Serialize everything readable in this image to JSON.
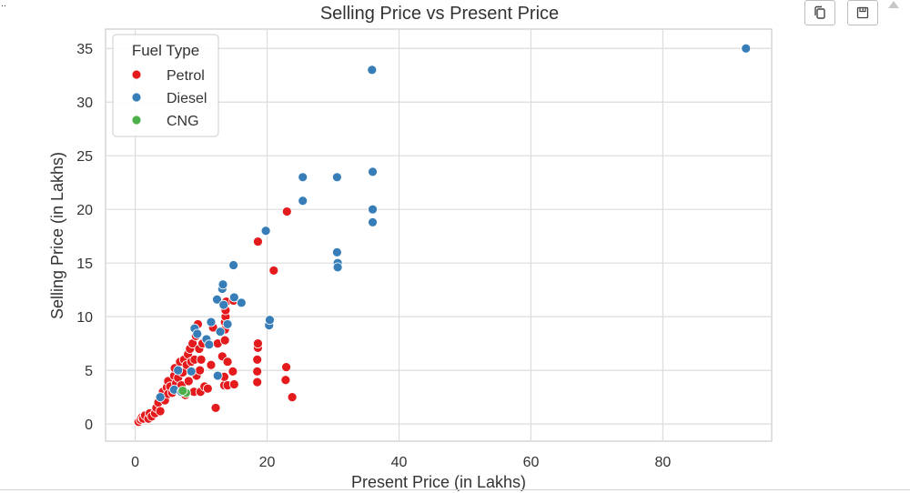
{
  "toolbar": {
    "corner_text": "..",
    "copy_icon": "copy-icon",
    "save_icon": "save-icon",
    "scroll_icon": "triangle-up-icon"
  },
  "chart_data": {
    "type": "scatter",
    "title": "Selling Price vs Present Price",
    "xlabel": "Present Price (in Lakhs)",
    "ylabel": "Selling Price (in Lakhs)",
    "xlim": [
      -4.5,
      96.5
    ],
    "ylim": [
      -1.6,
      36.8
    ],
    "xticks": [
      0,
      20,
      40,
      60,
      80
    ],
    "yticks": [
      0,
      5,
      10,
      15,
      20,
      25,
      30,
      35
    ],
    "grid": true,
    "legend": {
      "title": "Fuel Type",
      "placement": "top-left"
    },
    "series": [
      {
        "name": "Petrol",
        "color": "#e41a1c",
        "points": [
          [
            0.5,
            0.2
          ],
          [
            0.8,
            0.4
          ],
          [
            1.0,
            0.6
          ],
          [
            1.2,
            0.5
          ],
          [
            1.5,
            0.8
          ],
          [
            2.0,
            0.5
          ],
          [
            2.2,
            1.0
          ],
          [
            2.5,
            0.7
          ],
          [
            3.0,
            1.0
          ],
          [
            3.2,
            1.5
          ],
          [
            3.5,
            2.0
          ],
          [
            3.8,
            1.2
          ],
          [
            4.0,
            2.5
          ],
          [
            4.2,
            3.0
          ],
          [
            4.5,
            2.2
          ],
          [
            4.8,
            3.4
          ],
          [
            5.0,
            2.8
          ],
          [
            5.0,
            4.0
          ],
          [
            5.3,
            3.5
          ],
          [
            5.6,
            2.9
          ],
          [
            5.9,
            4.5
          ],
          [
            6.0,
            5.2
          ],
          [
            6.2,
            3.8
          ],
          [
            6.5,
            4.3
          ],
          [
            6.8,
            5.8
          ],
          [
            7.0,
            3.6
          ],
          [
            7.2,
            4.8
          ],
          [
            7.4,
            6.0
          ],
          [
            7.6,
            2.7
          ],
          [
            7.8,
            5.5
          ],
          [
            8.0,
            6.5
          ],
          [
            8.1,
            4.0
          ],
          [
            8.3,
            7.0
          ],
          [
            8.5,
            5.8
          ],
          [
            8.7,
            7.5
          ],
          [
            8.9,
            3.0
          ],
          [
            9.0,
            6.0
          ],
          [
            9.2,
            8.2
          ],
          [
            9.3,
            4.5
          ],
          [
            9.5,
            9.3
          ],
          [
            9.7,
            7.0
          ],
          [
            9.8,
            5.0
          ],
          [
            9.9,
            3.0
          ],
          [
            10.0,
            6.0
          ],
          [
            10.2,
            7.5
          ],
          [
            10.5,
            3.5
          ],
          [
            11.0,
            3.3
          ],
          [
            11.5,
            5.5
          ],
          [
            11.8,
            9.0
          ],
          [
            12.2,
            1.5
          ],
          [
            12.5,
            7.5
          ],
          [
            13.2,
            6.3
          ],
          [
            13.5,
            3.6
          ],
          [
            13.5,
            4.4
          ],
          [
            13.6,
            7.8
          ],
          [
            13.6,
            8.8
          ],
          [
            13.6,
            9.5
          ],
          [
            13.7,
            10.0
          ],
          [
            13.7,
            10.6
          ],
          [
            13.8,
            11.4
          ],
          [
            14.0,
            5.8
          ],
          [
            14.0,
            3.6
          ],
          [
            14.8,
            4.9
          ],
          [
            14.9,
            11.5
          ],
          [
            15.0,
            3.7
          ],
          [
            18.5,
            3.9
          ],
          [
            18.5,
            4.9
          ],
          [
            18.5,
            6.0
          ],
          [
            18.6,
            7.1
          ],
          [
            18.6,
            7.5
          ],
          [
            18.6,
            17.0
          ],
          [
            21.0,
            14.3
          ],
          [
            22.8,
            4.1
          ],
          [
            22.9,
            5.3
          ],
          [
            23.0,
            19.8
          ],
          [
            23.8,
            2.5
          ]
        ]
      },
      {
        "name": "Diesel",
        "color": "#377eb8",
        "points": [
          [
            3.8,
            2.5
          ],
          [
            5.9,
            3.2
          ],
          [
            6.5,
            5.0
          ],
          [
            7.0,
            3.0
          ],
          [
            8.5,
            4.9
          ],
          [
            9.0,
            8.9
          ],
          [
            9.4,
            8.4
          ],
          [
            10.8,
            7.9
          ],
          [
            11.2,
            7.4
          ],
          [
            11.5,
            9.5
          ],
          [
            12.4,
            11.6
          ],
          [
            12.5,
            4.5
          ],
          [
            12.9,
            8.6
          ],
          [
            13.2,
            12.6
          ],
          [
            13.3,
            13.0
          ],
          [
            13.4,
            11.1
          ],
          [
            14.0,
            9.3
          ],
          [
            14.9,
            14.8
          ],
          [
            15.0,
            11.8
          ],
          [
            16.1,
            11.3
          ],
          [
            19.8,
            18.0
          ],
          [
            20.3,
            9.2
          ],
          [
            20.4,
            9.7
          ],
          [
            25.4,
            23.0
          ],
          [
            25.4,
            20.8
          ],
          [
            30.6,
            23.0
          ],
          [
            30.6,
            16.0
          ],
          [
            30.7,
            15.0
          ],
          [
            30.7,
            14.6
          ],
          [
            35.9,
            33.0
          ],
          [
            36.0,
            23.5
          ],
          [
            36.0,
            20.0
          ],
          [
            36.0,
            18.8
          ],
          [
            92.6,
            35.0
          ]
        ]
      },
      {
        "name": "CNG",
        "color": "#4daf4a",
        "points": [
          [
            7.7,
            2.9
          ],
          [
            7.2,
            3.1
          ]
        ]
      }
    ]
  }
}
